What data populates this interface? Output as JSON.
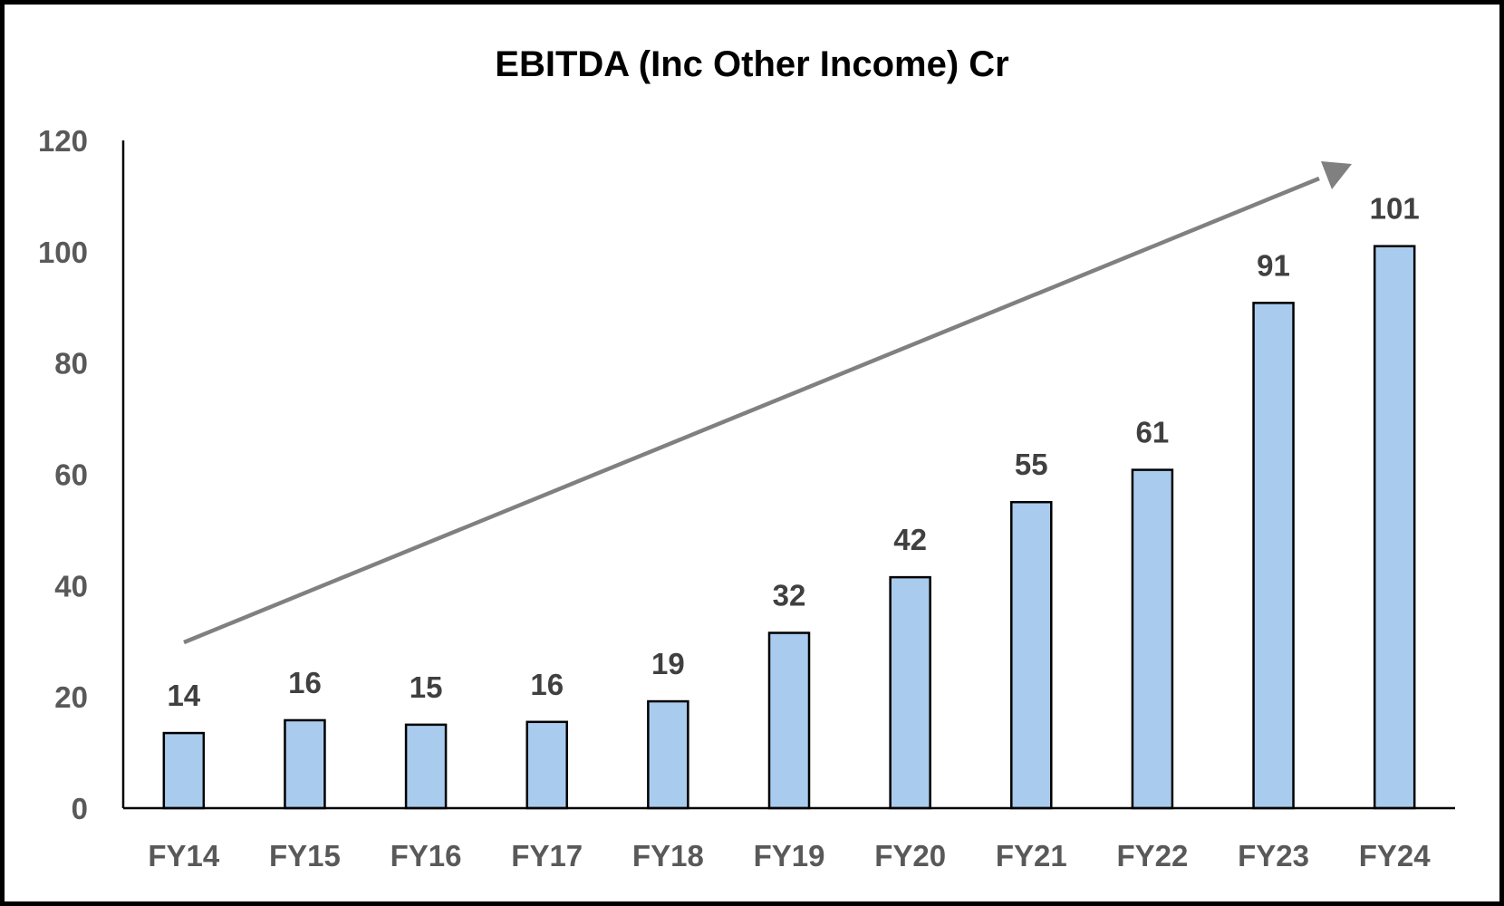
{
  "chart_data": {
    "type": "bar",
    "title": "EBITDA (Inc Other Income) Cr",
    "categories": [
      "FY14",
      "FY15",
      "FY16",
      "FY17",
      "FY18",
      "FY19",
      "FY20",
      "FY21",
      "FY22",
      "FY23",
      "FY24"
    ],
    "values": [
      13.5,
      15.8,
      15,
      15.5,
      19.2,
      31.5,
      41.5,
      55,
      60.8,
      90.8,
      101
    ],
    "data_labels": [
      "14",
      "16",
      "15",
      "16",
      "19",
      "32",
      "42",
      "55",
      "61",
      "91",
      "101"
    ],
    "yticks": [
      "0",
      "20",
      "40",
      "60",
      "80",
      "100",
      "120"
    ],
    "ylim": [
      0,
      120
    ],
    "xlabel": "",
    "ylabel": "",
    "grid": false,
    "legend": "none",
    "trend_arrow": true,
    "colors": {
      "bar_fill": "#a9cbee",
      "bar_stroke": "#000000",
      "arrow": "#808080",
      "tick_text": "#595959",
      "label_text": "#404040"
    }
  }
}
